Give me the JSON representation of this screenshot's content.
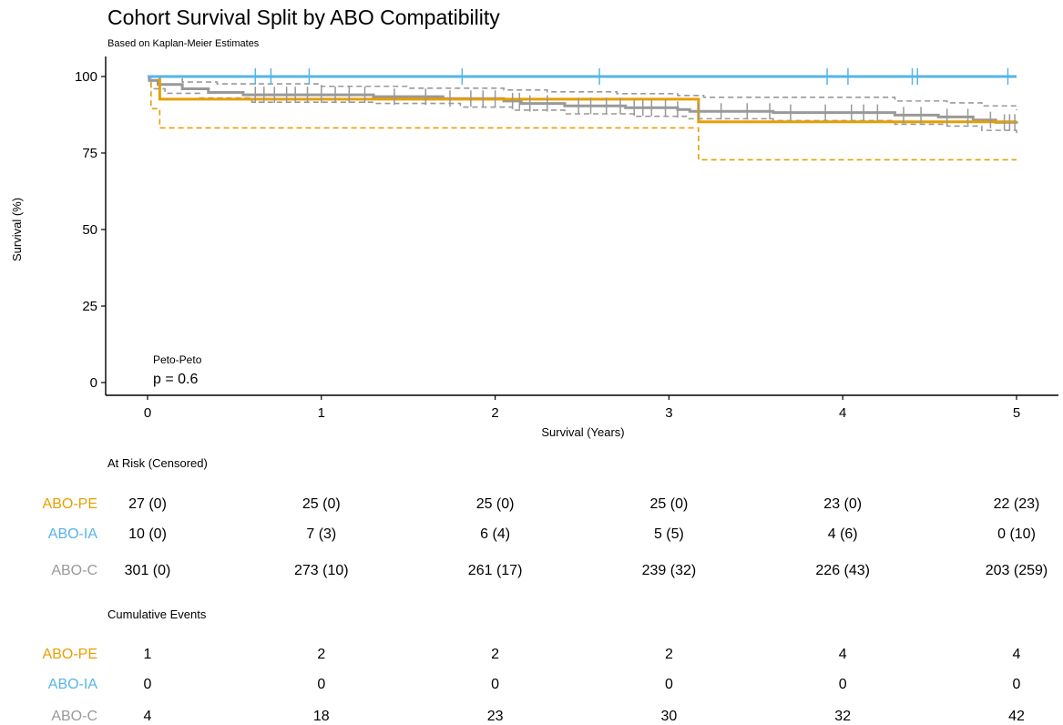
{
  "chart_data": {
    "type": "line",
    "title": "Cohort Survival Split by ABO Compatibility",
    "subtitle": "Based on Kaplan-Meier Estimates",
    "xlabel": "Survival (Years)",
    "ylabel": "Survival (%)",
    "xlim": [
      0,
      5
    ],
    "ylim": [
      0,
      100
    ],
    "xticks": [
      0,
      1,
      2,
      3,
      4,
      5
    ],
    "yticks": [
      0,
      25,
      50,
      75,
      100
    ],
    "grid": false,
    "legend": "none",
    "annotation": {
      "test": "Peto-Peto",
      "pvalue": "p = 0.6"
    },
    "series": [
      {
        "name": "ABO-PE",
        "color": "#E69F00",
        "steps": [
          [
            0,
            100
          ],
          [
            0.07,
            92.6
          ],
          [
            3.12,
            92.6
          ],
          [
            3.17,
            85.2
          ],
          [
            5,
            85.2
          ]
        ],
        "ci_lower": [
          [
            0,
            100
          ],
          [
            0.02,
            89.5
          ],
          [
            0.07,
            83.2
          ],
          [
            3.12,
            83.2
          ],
          [
            3.17,
            72.8
          ],
          [
            5,
            72.8
          ]
        ],
        "ci_upper": [
          [
            0,
            100
          ],
          [
            3.15,
            100
          ],
          [
            5,
            100
          ]
        ],
        "censors": []
      },
      {
        "name": "ABO-IA",
        "color": "#56B4E9",
        "steps": [
          [
            0,
            100
          ],
          [
            5,
            100
          ]
        ],
        "censors": [
          0.62,
          0.71,
          0.93,
          1.81,
          2.6,
          3.91,
          4.03,
          4.4,
          4.43,
          4.95
        ]
      },
      {
        "name": "ABO-C",
        "color": "#999999",
        "steps": [
          [
            0,
            100
          ],
          [
            0.01,
            98.7
          ],
          [
            0.06,
            97.4
          ],
          [
            0.2,
            96.0
          ],
          [
            0.35,
            94.8
          ],
          [
            0.55,
            94.0
          ],
          [
            1.3,
            93.4
          ],
          [
            1.7,
            92.8
          ],
          [
            2.05,
            92.0
          ],
          [
            2.15,
            91.2
          ],
          [
            2.4,
            90.4
          ],
          [
            2.75,
            89.8
          ],
          [
            3.05,
            89.2
          ],
          [
            3.12,
            88.6
          ],
          [
            3.6,
            88.2
          ],
          [
            4.3,
            87.4
          ],
          [
            4.55,
            86.8
          ],
          [
            4.75,
            85.8
          ],
          [
            4.88,
            85.0
          ],
          [
            5,
            84.6
          ]
        ],
        "ci_lower": [
          [
            0,
            100
          ],
          [
            0.02,
            96.0
          ],
          [
            0.1,
            94.5
          ],
          [
            0.3,
            93.0
          ],
          [
            0.6,
            91.6
          ],
          [
            1.3,
            91.2
          ],
          [
            1.8,
            90.0
          ],
          [
            2.1,
            89.0
          ],
          [
            2.4,
            87.8
          ],
          [
            2.8,
            87.0
          ],
          [
            3.1,
            86.2
          ],
          [
            3.6,
            85.6
          ],
          [
            4.3,
            84.4
          ],
          [
            4.6,
            83.8
          ],
          [
            4.8,
            82.4
          ],
          [
            5,
            81.0
          ]
        ],
        "ci_upper": [
          [
            0,
            100
          ],
          [
            0.05,
            99.8
          ],
          [
            0.2,
            98.2
          ],
          [
            0.4,
            97.6
          ],
          [
            1.0,
            96.8
          ],
          [
            1.5,
            96.2
          ],
          [
            2.05,
            95.6
          ],
          [
            2.3,
            95.0
          ],
          [
            2.7,
            94.4
          ],
          [
            3.05,
            93.8
          ],
          [
            3.2,
            93.2
          ],
          [
            4.3,
            92.0
          ],
          [
            4.6,
            91.4
          ],
          [
            4.8,
            90.4
          ],
          [
            5,
            89.0
          ]
        ],
        "censors": [
          0.62,
          0.67,
          0.73,
          0.8,
          0.85,
          0.92,
          1.0,
          1.08,
          1.16,
          1.25,
          1.42,
          1.6,
          1.74,
          1.86,
          1.93,
          2.0,
          2.1,
          2.14,
          2.2,
          2.3,
          2.48,
          2.55,
          2.64,
          2.72,
          2.8,
          2.85,
          2.9,
          2.98,
          3.05,
          3.17,
          3.3,
          3.45,
          3.58,
          3.7,
          3.9,
          4.05,
          4.12,
          4.2,
          4.35,
          4.45,
          4.6,
          4.72,
          4.85,
          4.93,
          4.96,
          4.99
        ]
      }
    ]
  },
  "risk_table": {
    "title": "At Risk (Censored)",
    "rows": [
      {
        "label": "ABO-PE",
        "color": "#E69F00",
        "values": [
          "27 (0)",
          "25 (0)",
          "25 (0)",
          "25 (0)",
          "23 (0)",
          "22 (23)"
        ]
      },
      {
        "label": "ABO-IA",
        "color": "#56B4E9",
        "values": [
          "10 (0)",
          "7 (3)",
          "6 (4)",
          "5 (5)",
          "4 (6)",
          "0 (10)"
        ]
      },
      {
        "label": "ABO-C",
        "color": "#999999",
        "values": [
          "301 (0)",
          "273 (10)",
          "261 (17)",
          "239 (32)",
          "226 (43)",
          "203 (259)"
        ]
      }
    ]
  },
  "events_table": {
    "title": "Cumulative Events",
    "rows": [
      {
        "label": "ABO-PE",
        "color": "#E69F00",
        "values": [
          "1",
          "2",
          "2",
          "2",
          "4",
          "4"
        ]
      },
      {
        "label": "ABO-IA",
        "color": "#56B4E9",
        "values": [
          "0",
          "0",
          "0",
          "0",
          "0",
          "0"
        ]
      },
      {
        "label": "ABO-C",
        "color": "#999999",
        "values": [
          "4",
          "18",
          "23",
          "30",
          "32",
          "42"
        ]
      }
    ]
  }
}
